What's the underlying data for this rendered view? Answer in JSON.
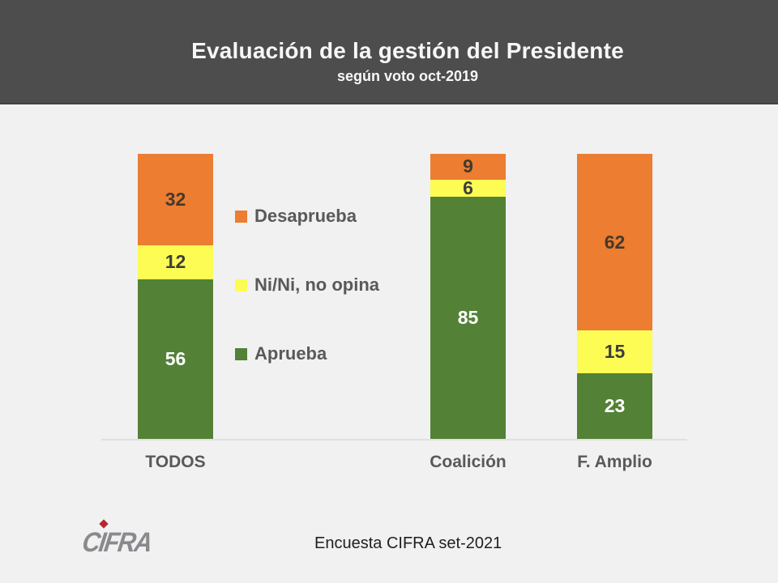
{
  "header": {
    "title": "Evaluación de la gestión del Presidente",
    "subtitle": "según voto oct-2019"
  },
  "chart_data": {
    "type": "bar",
    "stacked": true,
    "orientation": "vertical",
    "title": "Evaluación de la gestión del Presidente",
    "subtitle": "según voto oct-2019",
    "categories": [
      "TODOS",
      "Coalición",
      "F. Amplio"
    ],
    "series": [
      {
        "name": "Aprueba",
        "values": [
          56,
          85,
          23
        ],
        "color": "#538135",
        "label_color": "#FFFFFF"
      },
      {
        "name": "Ni/Ni, no opina",
        "values": [
          12,
          6,
          15
        ],
        "color": "#FCFC54",
        "label_color": "#3D3D3D"
      },
      {
        "name": "Desaprueba",
        "values": [
          32,
          9,
          62
        ],
        "color": "#EC7D31",
        "label_color": "#45392C"
      }
    ],
    "ylim": [
      0,
      100
    ],
    "gridlines": false,
    "legend_position": "left-middle",
    "legend_order_top_to_bottom": [
      "Desaprueba",
      "Ni/Ni, no opina",
      "Aprueba"
    ]
  },
  "footer": {
    "logo_text": "CIFRA",
    "source": "Encuesta CIFRA set-2021"
  },
  "colors": {
    "header_bg": "#4D4D4D",
    "header_text": "#F7F7F7",
    "page_bg": "#F1F1F2",
    "axis_line": "#E0E0E0",
    "category_label": "#595959",
    "legend_text": "#595959",
    "logo_gray": "#8A8A8E",
    "logo_accent": "#B2292E",
    "source_text": "#1F1F1F"
  }
}
